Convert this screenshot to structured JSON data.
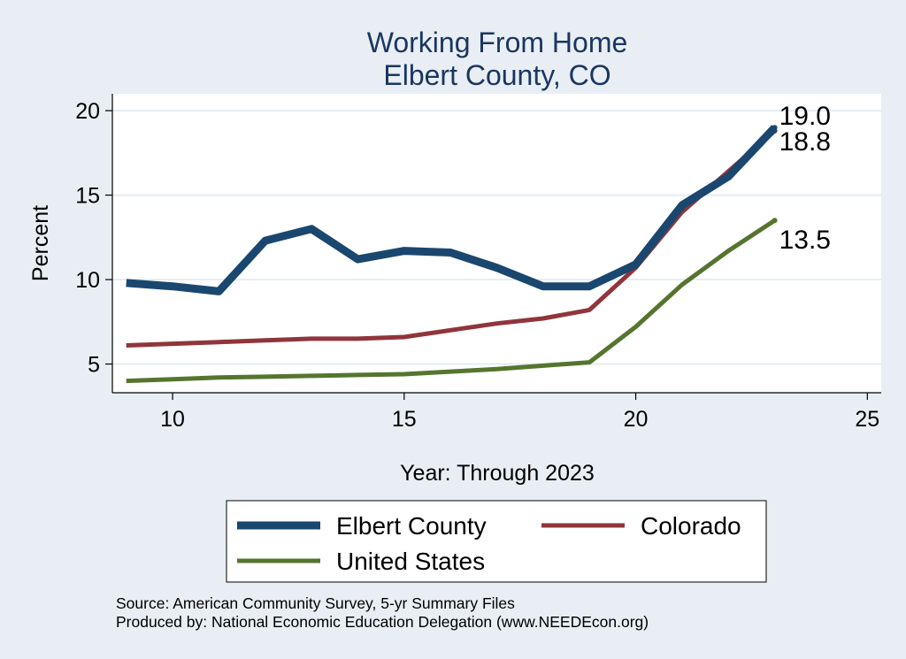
{
  "chart_data": {
    "type": "line",
    "title_lines": [
      "Working From Home",
      "Elbert County, CO"
    ],
    "xlabel": "Year: Through 2023",
    "ylabel": "Percent",
    "xlim": [
      8.7,
      25.3
    ],
    "ylim": [
      3.3,
      21.0
    ],
    "xticks": [
      10,
      15,
      20,
      25
    ],
    "yticks": [
      5,
      10,
      15,
      20
    ],
    "grid": true,
    "legend_position": "bottom",
    "x": [
      9,
      10,
      11,
      12,
      13,
      14,
      15,
      16,
      17,
      18,
      19,
      20,
      21,
      22,
      23
    ],
    "series": [
      {
        "name": "Elbert County",
        "color": "#1a476f",
        "width": 9,
        "values": [
          9.8,
          9.6,
          9.3,
          12.3,
          13.0,
          11.2,
          11.7,
          11.6,
          10.7,
          9.6,
          9.6,
          10.9,
          14.4,
          16.1,
          19.0
        ],
        "end_label": "19.0"
      },
      {
        "name": "Colorado",
        "color": "#90353b",
        "width": 5,
        "values": [
          6.1,
          6.2,
          6.3,
          6.4,
          6.5,
          6.5,
          6.6,
          7.0,
          7.4,
          7.7,
          8.2,
          10.7,
          14.0,
          16.4,
          18.8
        ],
        "end_label": "18.8"
      },
      {
        "name": "United States",
        "color": "#55752f",
        "width": 5,
        "values": [
          4.0,
          4.1,
          4.2,
          4.25,
          4.3,
          4.35,
          4.4,
          4.55,
          4.7,
          4.9,
          5.1,
          7.2,
          9.7,
          11.7,
          13.5
        ],
        "end_label": "13.5"
      }
    ],
    "source_lines": [
      "Source: American Community Survey, 5-yr Summary Files",
      "Produced by: National Economic Education Delegation (www.NEEDEcon.org)"
    ]
  }
}
